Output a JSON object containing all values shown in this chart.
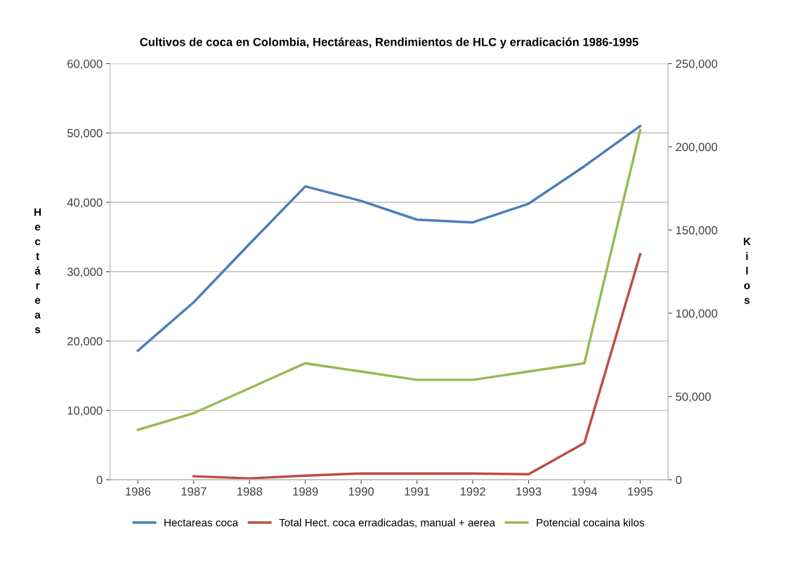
{
  "chart_data": {
    "type": "line",
    "title": "Cultivos de coca en Colombia, Hectáreas, Rendimientos de HLC y erradicación 1986-1995",
    "ylabel": "Hectáreas",
    "y2label": "Kilos",
    "categories": [
      "1986",
      "1987",
      "1988",
      "1989",
      "1990",
      "1991",
      "1992",
      "1993",
      "1994",
      "1995"
    ],
    "series": [
      {
        "name": "Hectareas coca",
        "color": "#4a7ebb",
        "values": [
          18600,
          25600,
          34000,
          42300,
          40200,
          37500,
          37100,
          39800,
          45200,
          51000
        ]
      },
      {
        "name": "Total Hect. coca erradicadas, manual + aerea",
        "color": "#be4b48",
        "values": [
          null,
          500,
          200,
          600,
          900,
          900,
          900,
          800,
          5300,
          32500
        ]
      },
      {
        "name": "Potencial cocaina kilos",
        "color": "#98b954",
        "axis": "y2",
        "values": [
          30000,
          40000,
          55000,
          70000,
          65000,
          60000,
          60000,
          65000,
          70000,
          210000
        ]
      }
    ],
    "ylim": [
      0,
      60000
    ],
    "yticks": [
      {
        "value": 0,
        "label": "0"
      },
      {
        "value": 10000,
        "label": "10,000"
      },
      {
        "value": 20000,
        "label": "20,000"
      },
      {
        "value": 30000,
        "label": "30,000"
      },
      {
        "value": 40000,
        "label": "40,000"
      },
      {
        "value": 50000,
        "label": "50,000"
      },
      {
        "value": 60000,
        "label": "60,000"
      }
    ],
    "y2lim": [
      0,
      250000
    ],
    "y2ticks": [
      {
        "value": 0,
        "label": "0"
      },
      {
        "value": 50000,
        "label": "50,000"
      },
      {
        "value": 100000,
        "label": "100,000"
      },
      {
        "value": 150000,
        "label": "150,000"
      },
      {
        "value": 200000,
        "label": "200,000"
      },
      {
        "value": 250000,
        "label": "250,000"
      }
    ],
    "grid": "y",
    "legend": "bottom",
    "marker": "none",
    "line_style": "solid"
  }
}
